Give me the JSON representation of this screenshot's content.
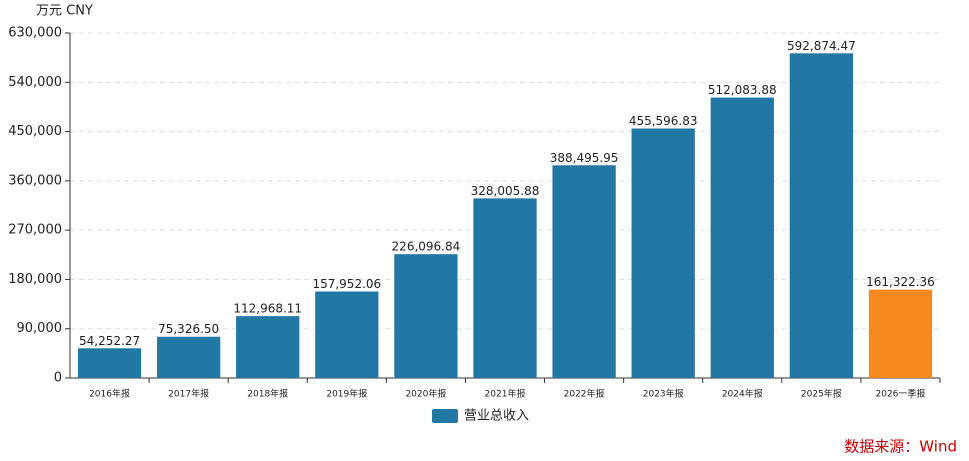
{
  "chart_data": {
    "type": "bar",
    "unit_label": "万元  CNY",
    "source": "数据来源：Wind",
    "categories": [
      "2016年报",
      "2017年报",
      "2018年报",
      "2019年报",
      "2020年报",
      "2021年报",
      "2022年报",
      "2023年报",
      "2024年报",
      "2025年报",
      "2026一季报"
    ],
    "series": [
      {
        "name": "营业总收入",
        "color": "#2277a4",
        "colors": [
          "#2277a4",
          "#2277a4",
          "#2277a4",
          "#2277a4",
          "#2277a4",
          "#2277a4",
          "#2277a4",
          "#2277a4",
          "#2277a4",
          "#2277a4",
          "#f5891d"
        ],
        "values": [
          54252.27,
          75326.5,
          112968.11,
          157952.06,
          226096.84,
          328005.88,
          388495.95,
          455596.83,
          512083.88,
          592874.47,
          161322.36
        ],
        "value_labels": [
          "54,252.27",
          "75,326.50",
          "112,968.11",
          "157,952.06",
          "226,096.84",
          "328,005.88",
          "388,495.95",
          "455,596.83",
          "512,083.88",
          "592,874.47",
          "161,322.36"
        ]
      }
    ],
    "ylim": [
      0,
      630000
    ],
    "yticks": [
      0,
      {
        "value": 90000,
        "label": "90,000"
      },
      {
        "value": 180000,
        "label": "180,000"
      },
      {
        "value": 270000,
        "label": "270,000"
      },
      {
        "value": 360000,
        "label": "360,000"
      },
      {
        "value": 450000,
        "label": "450,000"
      },
      {
        "value": 540000,
        "label": "540,000"
      },
      {
        "value": 630000,
        "label": "630,000"
      }
    ],
    "grid": true
  }
}
